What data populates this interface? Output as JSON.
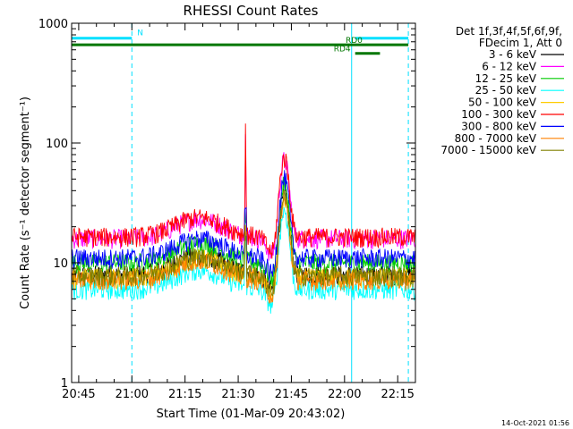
{
  "chart_data": {
    "type": "line",
    "title": "RHESSI Count Rates",
    "xlabel": "Start Time (01-Mar-09 20:43:02)",
    "ylabel": "Count Rate (s⁻¹ detector segment⁻¹)",
    "y_scale": "log",
    "ylim": [
      1,
      1000
    ],
    "xlim": [
      "20:43",
      "22:20"
    ],
    "x_ticks": [
      "20:45",
      "21:00",
      "21:15",
      "21:30",
      "21:45",
      "22:00",
      "22:15"
    ],
    "y_ticks": [
      "1",
      "10",
      "100",
      "1000"
    ],
    "grid": false,
    "legend_position": "outside-right",
    "legend_header": [
      "Det 1f,3f,4f,5f,6f,9f,",
      "FDecim 1, Att 0"
    ],
    "series": [
      {
        "name": "3 - 6 keV",
        "color": "#000000",
        "base": 8.0
      },
      {
        "name": "6 - 12 keV",
        "color": "#ff00ff",
        "base": 16.0
      },
      {
        "name": "12 - 25 keV",
        "color": "#00cc00",
        "base": 10.0
      },
      {
        "name": "25 - 50 keV",
        "color": "#00ffff",
        "base": 6.0
      },
      {
        "name": "50 - 100 keV",
        "color": "#ffcc00",
        "base": 7.5
      },
      {
        "name": "100 - 300 keV",
        "color": "#ff0000",
        "base": 16.5
      },
      {
        "name": "300 - 800 keV",
        "color": "#0000ff",
        "base": 11.0
      },
      {
        "name": "800 - 7000 keV",
        "color": "#ff8000",
        "base": 7.2
      },
      {
        "name": "7000 - 15000 keV",
        "color": "#808000",
        "base": 7.8
      }
    ],
    "flare_profile": {
      "hump_center": "21:19",
      "hump_factor": 1.45,
      "spike_time": "21:32",
      "spike_peak": 145,
      "peak_time": "21:43",
      "peak_value": 38,
      "dip_time": "21:40",
      "dip_factor": 0.7
    },
    "annotations": [
      {
        "label": "N",
        "color": "#00e0ff",
        "y": 750,
        "x_start": "20:43",
        "x_end": "21:00"
      },
      {
        "label": "",
        "color": "#00e0ff",
        "y": 750,
        "x_start": "22:03",
        "x_end": "22:18"
      },
      {
        "label": "RD0",
        "color": "#007700",
        "y": 660,
        "x_start": "20:43",
        "x_end": "22:18"
      },
      {
        "label": "RD4",
        "color": "#007700",
        "y": 560,
        "x_start": "22:03",
        "x_end": "22:10"
      }
    ],
    "vertical_lines": [
      {
        "x": "20:43",
        "style": "solid"
      },
      {
        "x": "21:00",
        "style": "dashed"
      },
      {
        "x": "22:02",
        "style": "solid"
      },
      {
        "x": "22:18",
        "style": "dashed"
      }
    ]
  },
  "footer_timestamp": "14-Oct-2021 01:56"
}
